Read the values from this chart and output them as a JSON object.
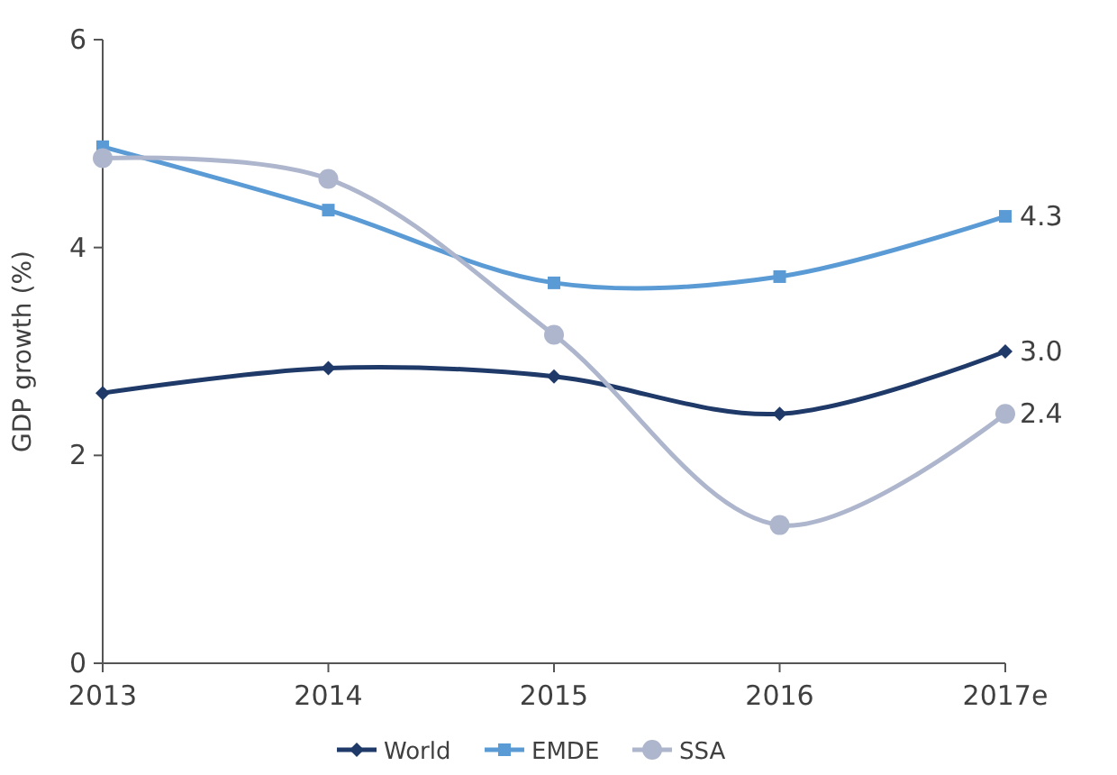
{
  "chart_data": {
    "type": "line",
    "ylabel": "GDP growth (%)",
    "categories": [
      "2013",
      "2014",
      "2015",
      "2016",
      "2017e"
    ],
    "ylim": [
      0,
      6
    ],
    "yticks": [
      0,
      2,
      4,
      6
    ],
    "grid": false,
    "legend": "bottom",
    "series": [
      {
        "name": "World",
        "color": "#1f3a68",
        "marker": "diamond",
        "values": [
          2.6,
          2.84,
          2.76,
          2.4,
          3.0
        ],
        "value_labels": [
          null,
          null,
          null,
          null,
          "3.0"
        ]
      },
      {
        "name": "EMDE",
        "color": "#5b9bd5",
        "marker": "square",
        "values": [
          4.97,
          4.36,
          3.66,
          3.72,
          4.3
        ],
        "value_labels": [
          null,
          null,
          null,
          null,
          "4.3"
        ]
      },
      {
        "name": "SSA",
        "color": "#adb6cc",
        "marker": "circle",
        "values": [
          4.86,
          4.66,
          3.16,
          1.33,
          2.4
        ],
        "value_labels": [
          null,
          null,
          null,
          null,
          "2.4"
        ]
      }
    ]
  }
}
